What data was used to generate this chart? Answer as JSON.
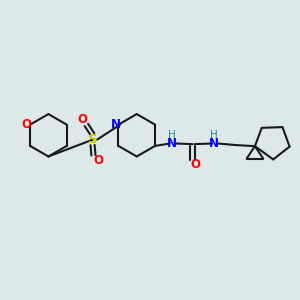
{
  "bg_color": "#dde8e8",
  "bond_color": "#1a1a1a",
  "o_color": "#ff0000",
  "n_color": "#0000ee",
  "s_color": "#cccc00",
  "h_color": "#2e8b8b",
  "bond_width": 1.5,
  "figsize": [
    3.0,
    3.0
  ],
  "dpi": 100,
  "xlim": [
    0,
    10
  ],
  "ylim": [
    0,
    10
  ]
}
